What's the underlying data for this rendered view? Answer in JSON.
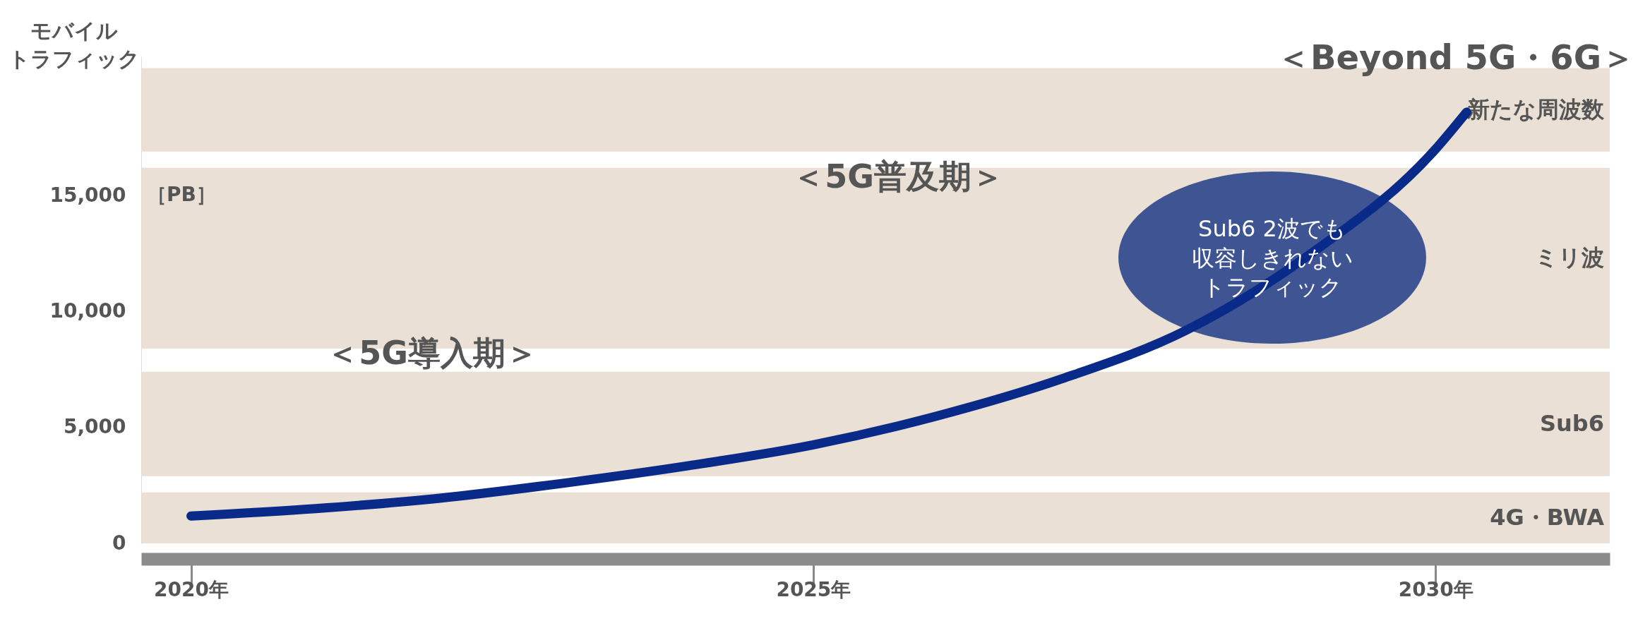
{
  "chart_data": {
    "type": "line",
    "ylabel": "モバイルトラフィック",
    "annotations": [
      "［PB］",
      "＜5G導入期＞",
      "＜5G普及期＞",
      "＜Beyond 5G・6G＞",
      "Sub6 2波でも収容しきれないトラフィック"
    ],
    "x": [
      2020,
      2021,
      2022,
      2023,
      2024,
      2025,
      2026,
      2027,
      2028,
      2029,
      2030,
      2030.25
    ],
    "series": [
      {
        "color": "#0a2a8a",
        "values": [
          1180,
          1500,
          1950,
          2600,
          3350,
          4250,
          5500,
          7100,
          9200,
          12500,
          17000,
          18600
        ]
      }
    ],
    "xlim": [
      2019.6,
      2031.4
    ],
    "ylim": [
      0,
      21000
    ],
    "xticks": [
      {
        "value": 2020,
        "label": "2020年"
      },
      {
        "value": 2025,
        "label": "2025年"
      },
      {
        "value": 2030,
        "label": "2030年"
      }
    ],
    "yticks": [
      0,
      {
        "value": 5000,
        "label": "5,000"
      },
      {
        "value": 10000,
        "label": "10,000"
      },
      {
        "value": 15000,
        "label": "15,000"
      }
    ],
    "bands": [
      {
        "axis": "y",
        "from": 0,
        "to": 2200,
        "label": "4G・BWA",
        "color": "#e8ddd0"
      },
      {
        "axis": "y",
        "from": 2900,
        "to": 7400,
        "label": "Sub6",
        "color": "#e8ddd0"
      },
      {
        "axis": "y",
        "from": 8400,
        "to": 16200,
        "label": "ミリ波",
        "color": "#e8ddd0"
      },
      {
        "axis": "y",
        "from": 16900,
        "to": 20500,
        "label": "新たな周波数",
        "color": "#e8ddd0"
      }
    ]
  }
}
